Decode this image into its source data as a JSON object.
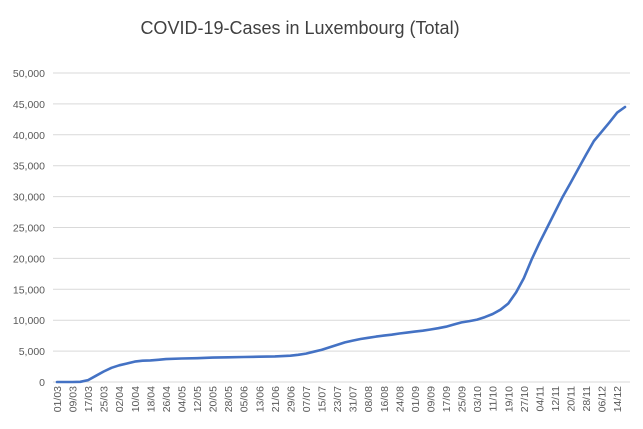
{
  "chart_data": {
    "type": "line",
    "title": "COVID-19-Cases in Luxembourg (Total)",
    "xlabel": "",
    "ylabel": "",
    "ylim": [
      0,
      50000
    ],
    "yticks": [
      "0",
      "5,000",
      "10,000",
      "15,000",
      "20,000",
      "25,000",
      "30,000",
      "35,000",
      "40,000",
      "45,000",
      "50,000"
    ],
    "grid": true,
    "legend": "none",
    "line_color": "#4472c4",
    "categories": [
      "01/03",
      "09/03",
      "17/03",
      "25/03",
      "02/04",
      "10/04",
      "18/04",
      "26/04",
      "04/05",
      "12/05",
      "20/05",
      "28/05",
      "05/06",
      "13/06",
      "21/06",
      "29/06",
      "07/07",
      "15/07",
      "23/07",
      "31/07",
      "08/08",
      "16/08",
      "24/08",
      "01/09",
      "09/09",
      "17/09",
      "25/09",
      "03/10",
      "11/10",
      "19/10",
      "27/10",
      "04/11",
      "12/11",
      "20/11",
      "28/11",
      "06/12",
      "14/12"
    ],
    "series": [
      {
        "x": [
          "01/03",
          "05/03",
          "09/03",
          "13/03",
          "17/03",
          "21/03",
          "25/03",
          "29/03",
          "02/04",
          "06/04",
          "10/04",
          "14/04",
          "18/04",
          "22/04",
          "26/04",
          "04/05",
          "12/05",
          "20/05",
          "28/05",
          "05/06",
          "13/06",
          "21/06",
          "29/06",
          "03/07",
          "07/07",
          "11/07",
          "15/07",
          "19/07",
          "23/07",
          "27/07",
          "31/07",
          "04/08",
          "08/08",
          "12/08",
          "16/08",
          "20/08",
          "24/08",
          "28/08",
          "01/09",
          "05/09",
          "09/09",
          "13/09",
          "17/09",
          "21/09",
          "25/09",
          "29/09",
          "03/10",
          "07/10",
          "11/10",
          "15/10",
          "19/10",
          "23/10",
          "27/10",
          "31/10",
          "04/11",
          "08/11",
          "12/11",
          "16/11",
          "20/11",
          "24/11",
          "28/11",
          "02/12",
          "06/12",
          "10/12",
          "14/12",
          "18/12"
        ],
        "y": [
          0,
          0,
          0,
          30,
          300,
          1000,
          1700,
          2300,
          2700,
          3000,
          3300,
          3450,
          3500,
          3600,
          3700,
          3800,
          3850,
          3950,
          4000,
          4050,
          4100,
          4150,
          4250,
          4400,
          4600,
          4900,
          5200,
          5600,
          6000,
          6400,
          6700,
          6950,
          7150,
          7350,
          7500,
          7650,
          7850,
          8000,
          8150,
          8300,
          8500,
          8700,
          8950,
          9300,
          9650,
          9850,
          10100,
          10500,
          11000,
          11700,
          12700,
          14500,
          16800,
          19800,
          22500,
          25000,
          27500,
          30000,
          32200,
          34500,
          36800,
          39000,
          40500,
          42000,
          43600,
          44500
        ]
      }
    ]
  }
}
